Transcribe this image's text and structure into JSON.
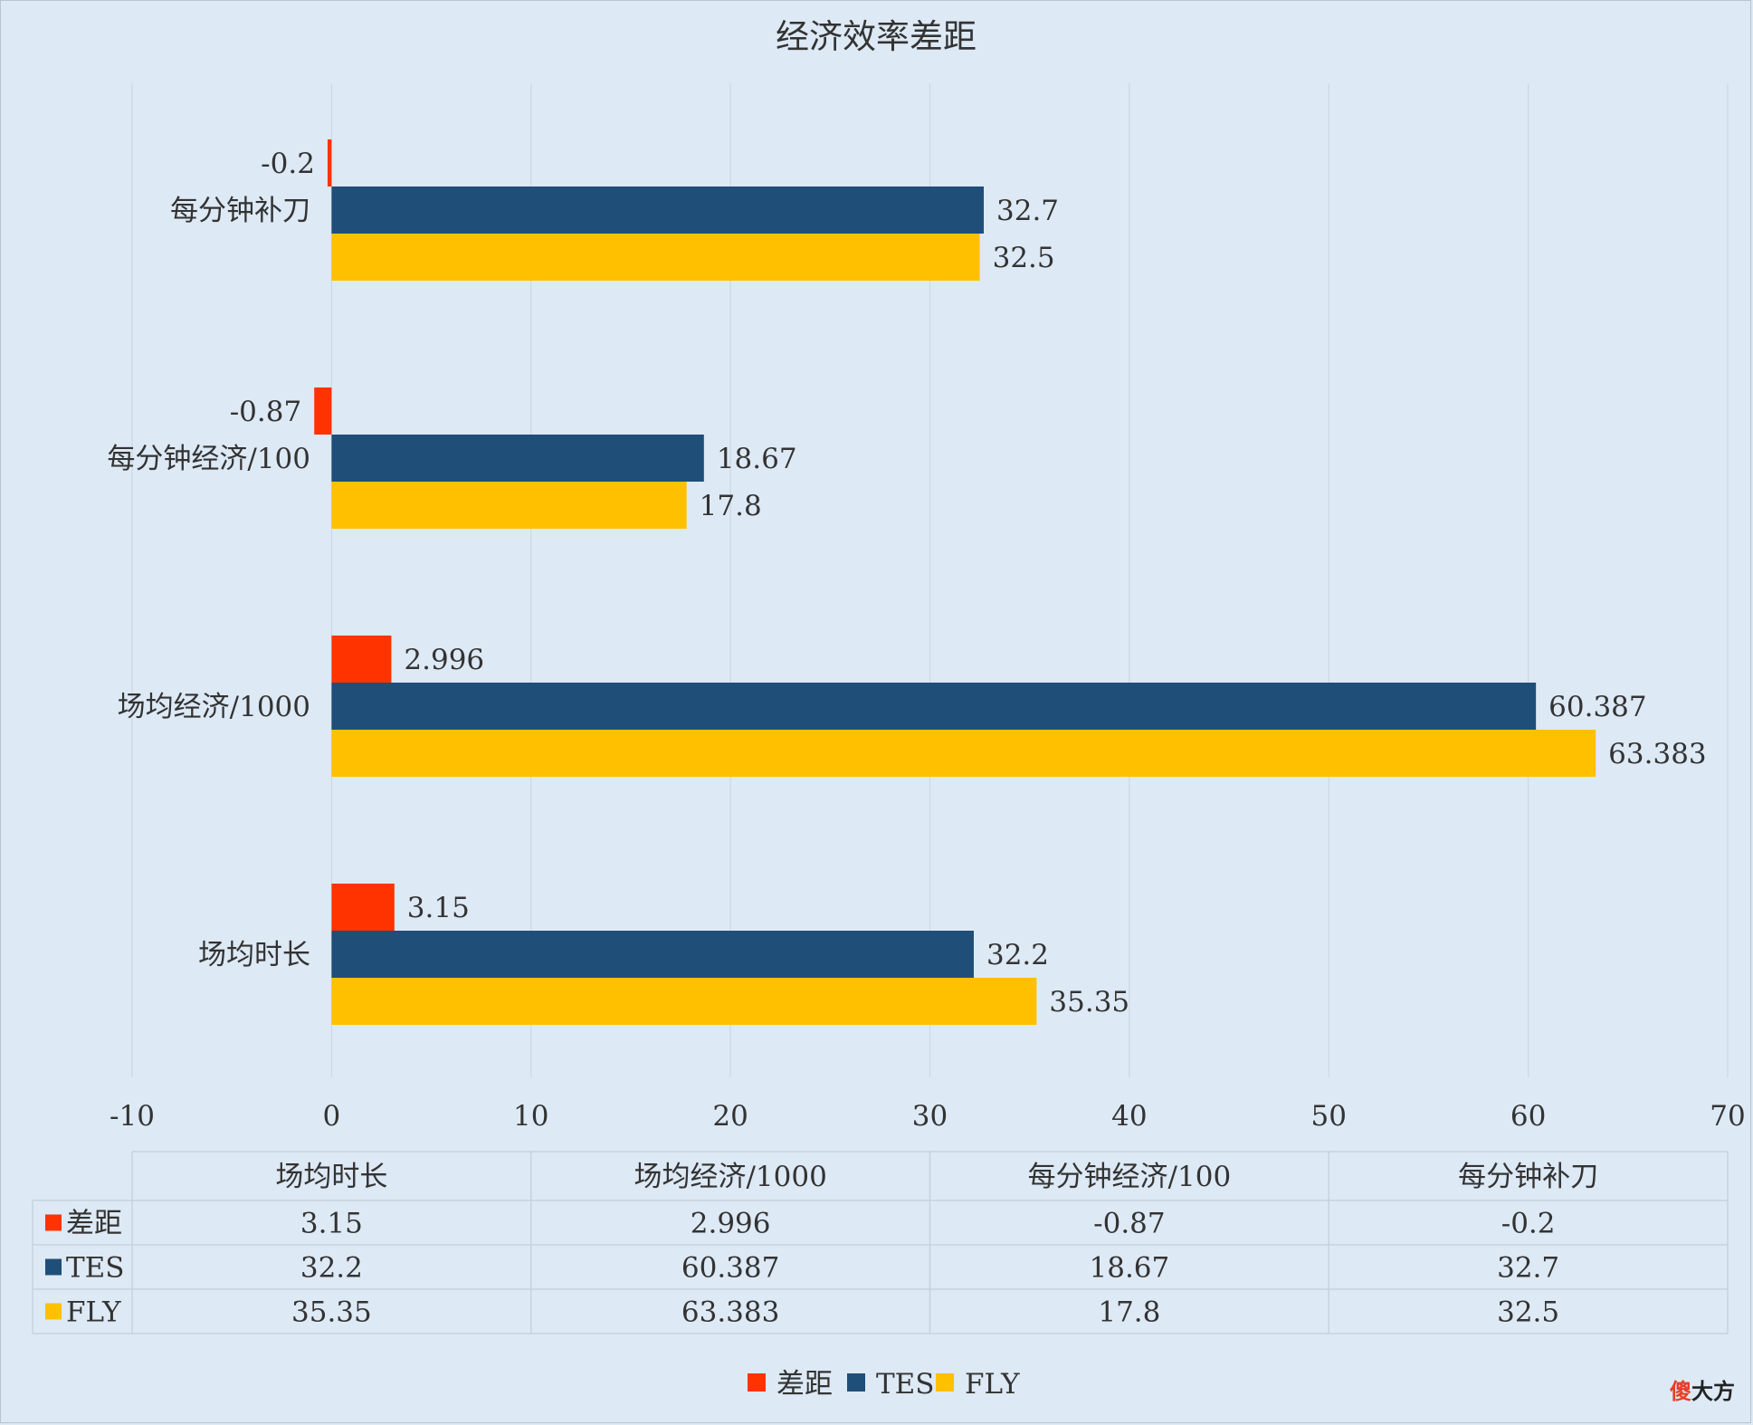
{
  "chart_data": {
    "type": "bar",
    "orientation": "horizontal",
    "title": "经济效率差距",
    "categories": [
      "每分钟补刀",
      "每分钟经济/100",
      "场均经济/1000",
      "场均时长"
    ],
    "series": [
      {
        "name": "差距",
        "color": "#ff3300",
        "values": [
          -0.2,
          -0.87,
          2.996,
          3.15
        ],
        "labels": [
          "-0.2",
          "-0.87",
          "2.996",
          "3.15"
        ]
      },
      {
        "name": "TES",
        "color": "#1f4e79",
        "values": [
          32.7,
          18.67,
          60.387,
          32.2
        ],
        "labels": [
          "32.7",
          "18.67",
          "60.387",
          "32.2"
        ]
      },
      {
        "name": "FLY",
        "color": "#ffc000",
        "values": [
          32.5,
          17.8,
          63.383,
          35.35
        ],
        "labels": [
          "32.5",
          "17.8",
          "63.383",
          "35.35"
        ]
      }
    ],
    "xlim": [
      -10,
      70
    ],
    "x_ticks": [
      -10,
      0,
      10,
      20,
      30,
      40,
      50,
      60,
      70
    ],
    "x_tick_labels": [
      "-10",
      "0",
      "10",
      "20",
      "30",
      "40",
      "50",
      "60",
      "70"
    ],
    "grid": true,
    "legend_position": "bottom",
    "data_table": {
      "columns": [
        "场均时长",
        "场均经济/1000",
        "每分钟经济/100",
        "每分钟补刀"
      ],
      "rows": [
        {
          "series": "差距",
          "color": "#ff3300",
          "cells": [
            "3.15",
            "2.996",
            "-0.87",
            "-0.2"
          ]
        },
        {
          "series": "TES",
          "color": "#1f4e79",
          "cells": [
            "32.2",
            "60.387",
            "18.67",
            "32.7"
          ]
        },
        {
          "series": "FLY",
          "color": "#ffc000",
          "cells": [
            "35.35",
            "63.383",
            "17.8",
            "32.5"
          ]
        }
      ]
    }
  },
  "watermark": {
    "part1": "傻",
    "part2": "大方"
  }
}
